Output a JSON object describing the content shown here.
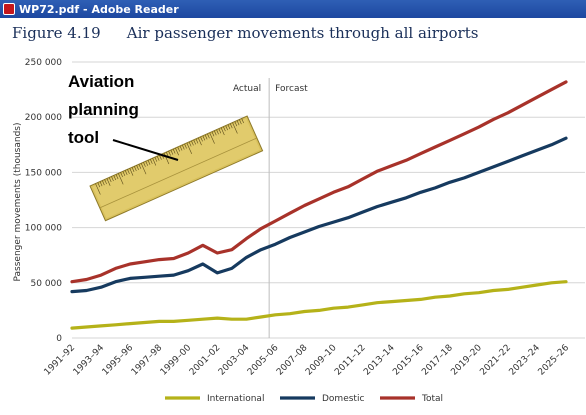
{
  "window": {
    "title": "WP72.pdf - Adobe Reader"
  },
  "figure": {
    "number": "Figure 4.19",
    "title": "Air passenger movements through all airports"
  },
  "annotation": {
    "lines": [
      "Aviation",
      "planning",
      "tool"
    ]
  },
  "chart_data": {
    "type": "line",
    "ylabel": "Passenger movements (thousands)",
    "ylim": [
      0,
      250000
    ],
    "yticks": [
      "0",
      "50 000",
      "100 000",
      "150 000",
      "200 000",
      "250 000"
    ],
    "ytick_values": [
      0,
      50000,
      100000,
      150000,
      200000,
      250000
    ],
    "x": [
      "1991–92",
      "1992–93",
      "1993–94",
      "1994–95",
      "1995–96",
      "1996–97",
      "1997–98",
      "1998–99",
      "1999–00",
      "2000–01",
      "2001–02",
      "2002–03",
      "2003–04",
      "2004–05",
      "2005–06",
      "2006–07",
      "2007–08",
      "2008–09",
      "2009–10",
      "2010–11",
      "2011–12",
      "2012–13",
      "2013–14",
      "2014–15",
      "2015–16",
      "2016–17",
      "2017–18",
      "2018–19",
      "2019–20",
      "2020–21",
      "2021–22",
      "2022–23",
      "2023–24",
      "2024–25",
      "2025–26"
    ],
    "xticks_shown": [
      "1991–92",
      "1993–94",
      "1995–96",
      "1997–98",
      "1999–00",
      "2001–02",
      "2003–04",
      "2005–06",
      "2007–08",
      "2009–10",
      "2011–12",
      "2013–14",
      "2015–16",
      "2017–18",
      "2019–20",
      "2021–22",
      "2023–24",
      "2025–26"
    ],
    "region_labels": {
      "actual": "Actual",
      "forecast": "Forcast"
    },
    "series": [
      {
        "name": "International",
        "color": "#b5b219",
        "values": [
          9000,
          10000,
          11000,
          12000,
          13000,
          14000,
          15000,
          15000,
          16000,
          17000,
          18000,
          17000,
          17000,
          19000,
          21000,
          22000,
          24000,
          25000,
          27000,
          28000,
          30000,
          32000,
          33000,
          34000,
          35000,
          37000,
          38000,
          40000,
          41000,
          43000,
          44000,
          46000,
          48000,
          50000,
          51000
        ]
      },
      {
        "name": "Domestic",
        "color": "#163a5f",
        "values": [
          42000,
          43000,
          46000,
          51000,
          54000,
          55000,
          56000,
          57000,
          61000,
          67000,
          59000,
          63000,
          73000,
          80000,
          85000,
          91000,
          96000,
          101000,
          105000,
          109000,
          114000,
          119000,
          123000,
          127000,
          132000,
          136000,
          141000,
          145000,
          150000,
          155000,
          160000,
          165000,
          170000,
          175000,
          181000
        ]
      },
      {
        "name": "Total",
        "color": "#a8322a",
        "values": [
          51000,
          53000,
          57000,
          63000,
          67000,
          69000,
          71000,
          72000,
          77000,
          84000,
          77000,
          80000,
          90000,
          99000,
          106000,
          113000,
          120000,
          126000,
          132000,
          137000,
          144000,
          151000,
          156000,
          161000,
          167000,
          173000,
          179000,
          185000,
          191000,
          198000,
          204000,
          211000,
          218000,
          225000,
          232000
        ]
      }
    ]
  }
}
